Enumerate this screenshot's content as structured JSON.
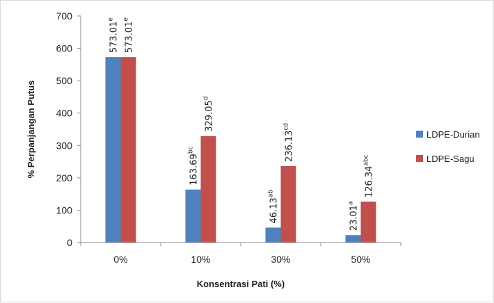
{
  "chart_data": {
    "type": "bar",
    "title": "",
    "xlabel": "Konsentrasi Pati (%)",
    "ylabel": "% Perpanjangan Putus",
    "categories": [
      "0%",
      "10%",
      "30%",
      "50%"
    ],
    "ylim": [
      0,
      700
    ],
    "yticks": [
      0,
      100,
      200,
      300,
      400,
      500,
      600,
      700
    ],
    "grid": false,
    "legend_position": "right",
    "series": [
      {
        "name": "LDPE-Durian",
        "color": "#4f81bd",
        "values": [
          573.01,
          163.69,
          46.13,
          23.01
        ],
        "labels": [
          {
            "value": "573.01",
            "sup": "e"
          },
          {
            "value": "163.69",
            "sup": "bc"
          },
          {
            "value": "46.13",
            "sup": "ab"
          },
          {
            "value": "23.01",
            "sup": "a"
          }
        ]
      },
      {
        "name": "LDPE-Sagu",
        "color": "#c0504d",
        "values": [
          573.01,
          329.05,
          236.13,
          126.34
        ],
        "labels": [
          {
            "value": "573.01",
            "sup": "e"
          },
          {
            "value": "329.05",
            "sup": "d"
          },
          {
            "value": "236.13",
            "sup": "cd"
          },
          {
            "value": "126.34",
            "sup": "abc"
          }
        ]
      }
    ]
  }
}
